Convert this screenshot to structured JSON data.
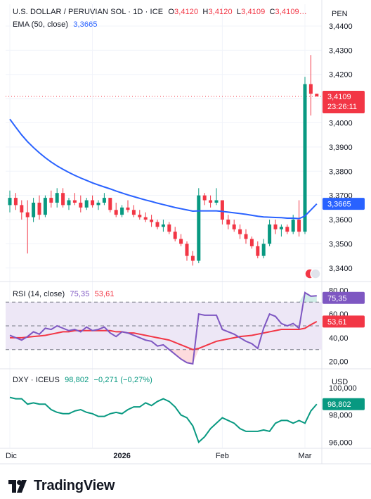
{
  "legend": {
    "symbol": "U.S. DOLLAR / PERUVIAN SOL · 1D · ICE",
    "o_label": "O",
    "o": "3,4120",
    "h_label": "H",
    "h": "3,4120",
    "l_label": "L",
    "l": "3,4109",
    "c_label": "C",
    "c": "3,4109…",
    "ema_label": "EMA (50, close)",
    "ema_value": "3,3665",
    "rsi_label": "RSI (14, close)",
    "rsi_value": "75,35",
    "rsi_ma": "53,61",
    "dxy_label": "DXY · ICEUS",
    "dxy_value": "98,802",
    "dxy_change": "−0,271 (−0,27%)"
  },
  "price_axis": {
    "currency": "PEN",
    "ticks": [
      "3,4400",
      "3,4300",
      "3,4200",
      "3,4100",
      "3,4000",
      "3,3900",
      "3,3800",
      "3,3700",
      "3,3600",
      "3,3500",
      "3,3400"
    ],
    "last_price": "3,4109",
    "countdown": "23:26:11",
    "ema_tag": "3,3665"
  },
  "rsi_axis": {
    "ticks": [
      "80,00",
      "60,00",
      "40,00",
      "20,00"
    ],
    "rsi_tag": "75,35",
    "ma_tag": "53,61"
  },
  "dxy_axis": {
    "currency": "USD",
    "ticks": [
      "100,000",
      "98,000",
      "96,000"
    ],
    "last_tag": "98,802"
  },
  "time_axis": {
    "labels": [
      "Dic",
      "2026",
      "Feb",
      "Mar"
    ]
  },
  "brand": {
    "name": "TradingView"
  },
  "colors": {
    "up": "#089981",
    "down": "#f23645",
    "ema": "#2962ff",
    "rsi": "#7e57c2",
    "rsi_ma": "#f23645",
    "rsi_band": "#ede7f6",
    "dxy": "#089981"
  },
  "chart_data": [
    {
      "type": "candlestick",
      "title": "U.S. DOLLAR / PERUVIAN SOL · 1D · ICE",
      "x_labels": [
        "Dic",
        "2026",
        "Feb",
        "Mar"
      ],
      "ylim": [
        3.335,
        3.449
      ],
      "candles": [
        [
          3.366,
          3.372,
          3.363,
          3.369
        ],
        [
          3.369,
          3.371,
          3.364,
          3.366
        ],
        [
          3.366,
          3.368,
          3.36,
          3.363
        ],
        [
          3.363,
          3.368,
          3.346,
          3.361
        ],
        [
          3.361,
          3.369,
          3.359,
          3.367
        ],
        [
          3.367,
          3.37,
          3.36,
          3.362
        ],
        [
          3.362,
          3.37,
          3.361,
          3.369
        ],
        [
          3.369,
          3.372,
          3.365,
          3.367
        ],
        [
          3.367,
          3.373,
          3.365,
          3.371
        ],
        [
          3.371,
          3.373,
          3.365,
          3.366
        ],
        [
          3.366,
          3.369,
          3.364,
          3.368
        ],
        [
          3.368,
          3.371,
          3.366,
          3.367
        ],
        [
          3.367,
          3.37,
          3.363,
          3.365
        ],
        [
          3.365,
          3.369,
          3.364,
          3.368
        ],
        [
          3.368,
          3.37,
          3.365,
          3.366
        ],
        [
          3.366,
          3.368,
          3.364,
          3.367
        ],
        [
          3.367,
          3.371,
          3.366,
          3.369
        ],
        [
          3.369,
          3.369,
          3.363,
          3.364
        ],
        [
          3.364,
          3.367,
          3.361,
          3.362
        ],
        [
          3.362,
          3.366,
          3.361,
          3.365
        ],
        [
          3.365,
          3.368,
          3.363,
          3.364
        ],
        [
          3.364,
          3.366,
          3.361,
          3.362
        ],
        [
          3.362,
          3.364,
          3.36,
          3.361
        ],
        [
          3.361,
          3.363,
          3.359,
          3.36
        ],
        [
          3.36,
          3.362,
          3.357,
          3.359
        ],
        [
          3.359,
          3.36,
          3.356,
          3.357
        ],
        [
          3.357,
          3.36,
          3.355,
          3.358
        ],
        [
          3.358,
          3.359,
          3.354,
          3.355
        ],
        [
          3.355,
          3.357,
          3.351,
          3.352
        ],
        [
          3.352,
          3.354,
          3.349,
          3.35
        ],
        [
          3.35,
          3.351,
          3.343,
          3.345
        ],
        [
          3.345,
          3.347,
          3.341,
          3.343
        ],
        [
          3.343,
          3.373,
          3.342,
          3.37
        ],
        [
          3.37,
          3.371,
          3.366,
          3.368
        ],
        [
          3.368,
          3.37,
          3.365,
          3.367
        ],
        [
          3.367,
          3.373,
          3.366,
          3.368
        ],
        [
          3.368,
          3.368,
          3.358,
          3.36
        ],
        [
          3.36,
          3.362,
          3.356,
          3.358
        ],
        [
          3.358,
          3.36,
          3.355,
          3.356
        ],
        [
          3.356,
          3.358,
          3.352,
          3.354
        ],
        [
          3.354,
          3.356,
          3.35,
          3.352
        ],
        [
          3.352,
          3.353,
          3.348,
          3.349
        ],
        [
          3.349,
          3.351,
          3.344,
          3.345
        ],
        [
          3.345,
          3.352,
          3.344,
          3.35
        ],
        [
          3.35,
          3.36,
          3.349,
          3.358
        ],
        [
          3.358,
          3.36,
          3.354,
          3.356
        ],
        [
          3.356,
          3.358,
          3.353,
          3.357
        ],
        [
          3.357,
          3.358,
          3.354,
          3.355
        ],
        [
          3.355,
          3.362,
          3.354,
          3.36
        ],
        [
          3.36,
          3.368,
          3.353,
          3.355
        ],
        [
          3.355,
          3.419,
          3.354,
          3.416
        ],
        [
          3.416,
          3.428,
          3.403,
          3.412
        ],
        [
          3.412,
          3.412,
          3.4109,
          3.4109
        ]
      ],
      "ema_label": "EMA (50, close)",
      "ema": [
        3.4015,
        3.3982,
        3.395,
        3.3922,
        3.3898,
        3.3876,
        3.3856,
        3.3838,
        3.3822,
        3.3808,
        3.3795,
        3.3783,
        3.3772,
        3.3762,
        3.3752,
        3.3743,
        3.3735,
        3.3727,
        3.3718,
        3.371,
        3.3702,
        3.3695,
        3.3688,
        3.3681,
        3.3675,
        3.3668,
        3.3662,
        3.3656,
        3.365,
        3.3645,
        3.364,
        3.3635,
        3.3636,
        3.3636,
        3.3636,
        3.3636,
        3.3634,
        3.3631,
        3.3628,
        3.3625,
        3.3622,
        3.3618,
        3.3614,
        3.3611,
        3.361,
        3.3609,
        3.3608,
        3.3606,
        3.3606,
        3.3604,
        3.3615,
        3.364,
        3.3665
      ],
      "last": 3.4109,
      "ema_last": 3.3665
    },
    {
      "type": "line",
      "title": "RSI (14, close)",
      "ylim": [
        15,
        85
      ],
      "levels": [
        70,
        50,
        30
      ],
      "series": [
        {
          "name": "RSI (14, close)",
          "values": [
            42,
            40,
            38,
            41,
            45,
            43,
            48,
            47,
            50,
            48,
            46,
            47,
            45,
            49,
            46,
            47,
            49,
            44,
            41,
            45,
            44,
            42,
            40,
            38,
            37,
            33,
            34,
            30,
            26,
            22,
            19,
            18,
            60,
            59,
            59,
            59,
            47,
            45,
            43,
            40,
            37,
            35,
            31,
            48,
            60,
            58,
            52,
            50,
            52,
            48,
            78,
            75,
            75.35
          ]
        },
        {
          "name": "MA",
          "values": [
            40,
            40,
            40,
            40.5,
            41,
            41.5,
            42,
            43,
            44,
            45,
            45,
            46,
            46,
            46,
            46,
            46,
            46,
            46,
            45,
            45,
            44,
            44,
            43,
            42,
            41,
            40,
            39,
            38,
            36,
            34,
            32,
            30,
            31,
            33,
            35,
            37,
            38,
            39,
            40,
            41,
            41.5,
            42,
            43,
            44,
            45,
            46,
            47,
            47,
            47,
            47,
            48,
            51,
            53.61
          ]
        }
      ],
      "last_rsi": 75.35,
      "last_ma": 53.61
    },
    {
      "type": "line",
      "title": "DXY · ICEUS",
      "ylim": [
        95.6,
        101.2
      ],
      "series": [
        {
          "name": "DXY · ICEUS",
          "values": [
            99.3,
            99.2,
            99.2,
            98.8,
            98.9,
            98.8,
            98.8,
            98.4,
            98.2,
            98.1,
            98.1,
            98.3,
            98.4,
            98.2,
            98.1,
            97.9,
            97.9,
            98.1,
            98.2,
            98.1,
            98.4,
            98.6,
            98.6,
            98.9,
            98.7,
            99.0,
            99.2,
            99.0,
            98.6,
            98.0,
            97.8,
            97.2,
            96.0,
            96.4,
            97.0,
            97.4,
            97.8,
            97.6,
            97.4,
            97.0,
            96.8,
            96.8,
            96.8,
            96.9,
            96.8,
            97.4,
            97.6,
            97.6,
            97.4,
            97.6,
            97.4,
            98.3,
            98.802
          ]
        }
      ],
      "last": 98.802
    }
  ]
}
